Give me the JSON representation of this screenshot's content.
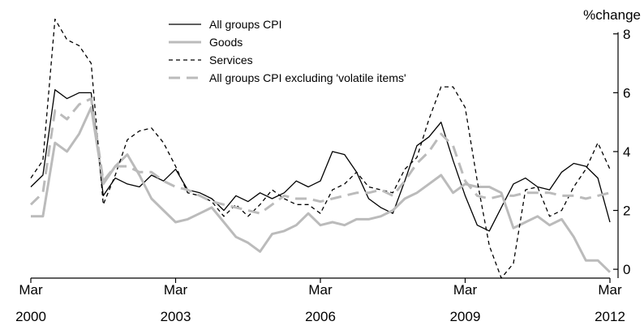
{
  "chart_data": {
    "type": "line",
    "y_label": "%change",
    "categories": [
      "Mar 2000",
      null,
      null,
      null,
      null,
      null,
      null,
      null,
      null,
      null,
      null,
      null,
      "Mar 2003",
      null,
      null,
      null,
      null,
      null,
      null,
      null,
      null,
      null,
      null,
      null,
      "Mar 2006",
      null,
      null,
      null,
      null,
      null,
      null,
      null,
      null,
      null,
      null,
      null,
      "Mar 2009",
      null,
      null,
      null,
      null,
      null,
      null,
      null,
      null,
      null,
      null,
      null,
      "Mar 2012"
    ],
    "series": [
      {
        "name": "All groups CPI",
        "color": "#000000",
        "dashed": false,
        "values": [
          2.8,
          3.2,
          6.1,
          5.8,
          6.0,
          6.0,
          2.5,
          3.1,
          2.9,
          2.8,
          3.2,
          3.0,
          3.4,
          2.7,
          2.6,
          2.4,
          2.0,
          2.5,
          2.3,
          2.6,
          2.4,
          2.6,
          3.0,
          2.8,
          3.0,
          4.0,
          3.9,
          3.3,
          2.4,
          2.1,
          1.9,
          3.0,
          4.2,
          4.5,
          5.0,
          3.7,
          2.5,
          1.5,
          1.3,
          2.1,
          2.9,
          3.1,
          2.8,
          2.7,
          3.3,
          3.6,
          3.5,
          3.1,
          1.6
        ]
      },
      {
        "name": "Goods",
        "color": "#bbbbbb",
        "dashed": false,
        "values": [
          1.8,
          1.8,
          4.3,
          4.0,
          4.6,
          5.5,
          2.9,
          3.5,
          3.9,
          3.2,
          2.4,
          2.0,
          1.6,
          1.7,
          1.9,
          2.1,
          1.6,
          1.1,
          0.9,
          0.6,
          1.2,
          1.3,
          1.5,
          1.9,
          1.5,
          1.6,
          1.5,
          1.7,
          1.7,
          1.8,
          2.0,
          2.4,
          2.6,
          2.9,
          3.2,
          2.6,
          2.9,
          2.8,
          2.8,
          2.6,
          1.4,
          1.6,
          1.8,
          1.5,
          1.7,
          1.1,
          0.3,
          0.3,
          -0.1
        ]
      },
      {
        "name": "Services",
        "color": "#000000",
        "dashed": true,
        "values": [
          3.1,
          3.7,
          8.5,
          7.8,
          7.6,
          7.0,
          2.2,
          3.2,
          4.4,
          4.7,
          4.8,
          4.3,
          3.5,
          2.6,
          2.5,
          2.3,
          1.8,
          2.2,
          1.8,
          2.2,
          2.7,
          2.4,
          2.2,
          2.2,
          1.9,
          2.7,
          2.9,
          3.3,
          2.8,
          2.7,
          2.6,
          3.4,
          3.8,
          5.1,
          6.2,
          6.2,
          5.5,
          3.0,
          0.8,
          -0.3,
          0.2,
          2.7,
          2.8,
          1.8,
          2.0,
          2.8,
          3.4,
          4.3,
          3.4
        ]
      },
      {
        "name": "All groups CPI excluding 'volatile items'",
        "color": "#bbbbbb",
        "dashed": true,
        "values": [
          2.2,
          2.6,
          5.4,
          5.1,
          5.6,
          5.8,
          3.0,
          3.5,
          3.5,
          3.3,
          3.3,
          3.0,
          2.8,
          2.7,
          2.5,
          2.3,
          2.2,
          2.1,
          2.0,
          1.9,
          2.2,
          2.5,
          2.4,
          2.4,
          2.3,
          2.4,
          2.5,
          2.6,
          2.6,
          2.7,
          2.5,
          3.0,
          3.6,
          4.0,
          4.6,
          4.2,
          3.0,
          2.5,
          2.4,
          2.5,
          2.5,
          2.6,
          2.6,
          2.6,
          2.5,
          2.5,
          2.4,
          2.5,
          2.6
        ]
      }
    ],
    "ylim": [
      -0.3,
      8.6
    ],
    "yticks": [
      0,
      2,
      4,
      6,
      8
    ],
    "y_axis_side": "right",
    "grid": false,
    "legend": "upper left"
  }
}
